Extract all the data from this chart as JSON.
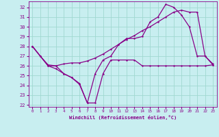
{
  "xlabel": "Windchill (Refroidissement éolien,°C)",
  "background_color": "#c8eef0",
  "grid_color": "#a0d8d0",
  "line_color": "#880088",
  "xlim": [
    -0.5,
    23.5
  ],
  "ylim": [
    21.8,
    32.6
  ],
  "yticks": [
    22,
    23,
    24,
    25,
    26,
    27,
    28,
    29,
    30,
    31,
    32
  ],
  "xticks": [
    0,
    1,
    2,
    3,
    4,
    5,
    6,
    7,
    8,
    9,
    10,
    11,
    12,
    13,
    14,
    15,
    16,
    17,
    18,
    19,
    20,
    21,
    22,
    23
  ],
  "series1_x": [
    0,
    1,
    2,
    3,
    4,
    5,
    6,
    7,
    8,
    9,
    10,
    11,
    12,
    13,
    14,
    15,
    16,
    17,
    18,
    19,
    20,
    21,
    22,
    23
  ],
  "series1_y": [
    28,
    27,
    26,
    25.7,
    25.2,
    24.8,
    24.1,
    22.2,
    22.2,
    25.2,
    26.6,
    26.6,
    26.6,
    26.6,
    26.0,
    26.0,
    26.0,
    26.0,
    26.0,
    26.0,
    26.0,
    26.0,
    26.0,
    26.1
  ],
  "series2_x": [
    0,
    1,
    2,
    3,
    4,
    5,
    6,
    7,
    8,
    9,
    10,
    11,
    12,
    13,
    14,
    15,
    16,
    17,
    18,
    19,
    20,
    21,
    22,
    23
  ],
  "series2_y": [
    28.0,
    27.0,
    26.0,
    26.0,
    26.2,
    26.3,
    26.3,
    26.5,
    26.8,
    27.2,
    27.7,
    28.2,
    28.7,
    29.1,
    29.6,
    30.0,
    30.5,
    31.0,
    31.5,
    31.7,
    31.5,
    31.5,
    27.0,
    26.1
  ],
  "series3_x": [
    0,
    1,
    2,
    3,
    4,
    5,
    6,
    7,
    8,
    9,
    10,
    11,
    12,
    13,
    14,
    15,
    16,
    17,
    18,
    19,
    20,
    21,
    22,
    23
  ],
  "series3_y": [
    28.0,
    27.0,
    26.1,
    26.0,
    25.2,
    24.8,
    24.2,
    22.2,
    25.2,
    26.6,
    27.0,
    28.2,
    28.8,
    28.8,
    29.0,
    30.5,
    31.0,
    32.3,
    32.0,
    31.2,
    30.0,
    27.0,
    27.0,
    26.2
  ]
}
